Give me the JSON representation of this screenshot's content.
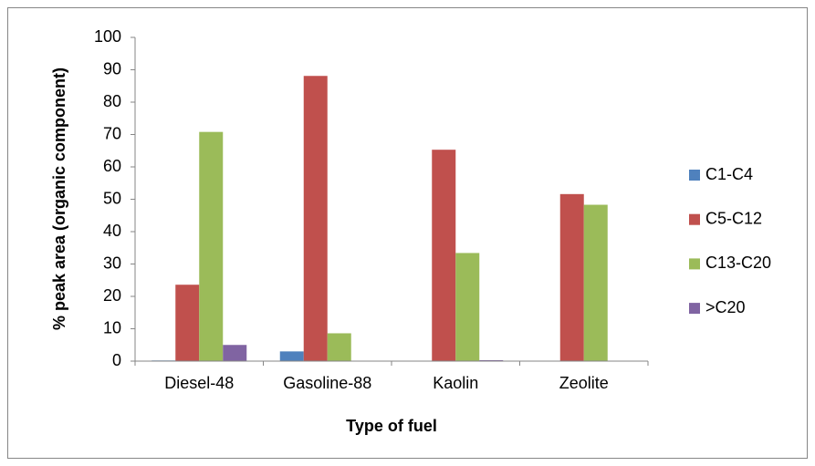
{
  "chart_data": {
    "type": "bar",
    "x_label": "Type of fuel",
    "y_label": "% peak area (organic component)",
    "categories": [
      "Diesel-48",
      "Gasoline-88",
      "Kaolin",
      "Zeolite"
    ],
    "series": [
      {
        "name": "C1-C4",
        "color": "#4f81bd",
        "values": [
          0.2,
          3.0,
          0,
          0
        ]
      },
      {
        "name": "C5-C12",
        "color": "#c0504d",
        "values": [
          23.6,
          88.1,
          65.3,
          51.6
        ]
      },
      {
        "name": "C13-C20",
        "color": "#9bbb59",
        "values": [
          70.8,
          8.6,
          33.4,
          48.3
        ]
      },
      {
        "name": ">C20",
        "color": "#8064a2",
        "values": [
          5.0,
          0,
          0.3,
          0
        ]
      }
    ],
    "ylim": [
      0,
      100
    ],
    "yticks": [
      0,
      10,
      20,
      30,
      40,
      50,
      60,
      70,
      80,
      90,
      100
    ],
    "legend": "right"
  }
}
